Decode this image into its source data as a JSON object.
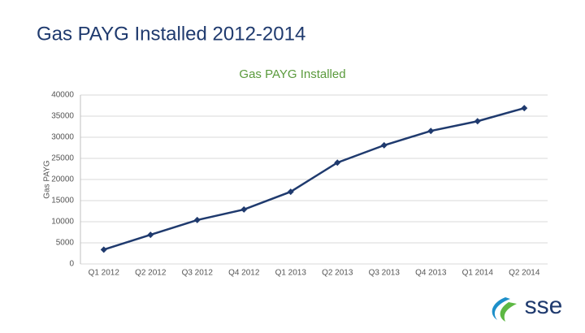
{
  "slide_title": "Gas PAYG Installed 2012-2014",
  "logo": "sse",
  "chart_data": {
    "type": "line",
    "title": "Gas PAYG Installed",
    "y_label": "Gas PAYG",
    "categories": [
      "Q1 2012",
      "Q2 2012",
      "Q3 2012",
      "Q4 2012",
      "Q1 2013",
      "Q2 2013",
      "Q3 2013",
      "Q4 2013",
      "Q1 2014",
      "Q2 2014"
    ],
    "values": [
      3400,
      6900,
      10400,
      12900,
      17100,
      24000,
      28100,
      31500,
      33800,
      36900
    ],
    "color": "#1f3a6e",
    "ylim": [
      0,
      40000
    ],
    "yticks": [
      0,
      5000,
      10000,
      15000,
      20000,
      25000,
      30000,
      35000,
      40000
    ],
    "grid": true
  }
}
